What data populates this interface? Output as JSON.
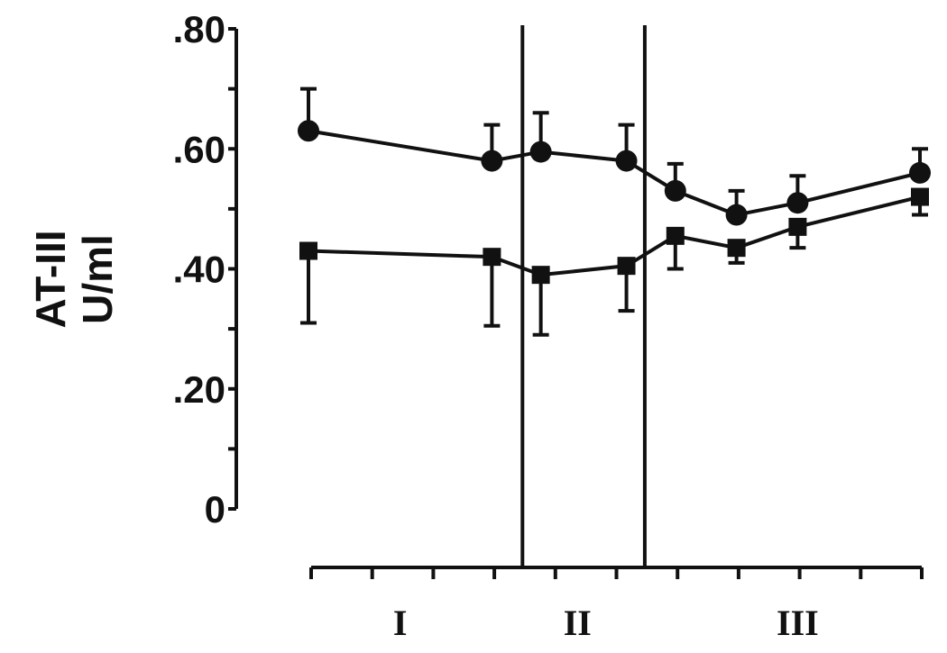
{
  "chart_data": {
    "type": "line",
    "title": "",
    "xlabel": "",
    "ylabel_lines": [
      "AT-III",
      "U/ml"
    ],
    "ylim": [
      0,
      0.8
    ],
    "yticks": [
      {
        "value": 0,
        "label": "0"
      },
      {
        "value": 0.2,
        "label": ".20"
      },
      {
        "value": 0.4,
        "label": ".40"
      },
      {
        "value": 0.6,
        "label": ".60"
      },
      {
        "value": 0.8,
        "label": ".80"
      }
    ],
    "y_minor_step": 0.1,
    "x_tick_count": 11,
    "xlim": [
      0,
      10
    ],
    "grid": false,
    "legend": "none",
    "sections": [
      {
        "label": "I",
        "center": 1.5
      },
      {
        "label": "II",
        "center": 4.4
      },
      {
        "label": "III",
        "center": 8
      }
    ],
    "dividers": [
      3.5,
      5.5
    ],
    "series": [
      {
        "marker": "circle",
        "x": [
          0,
          3,
          3.8,
          5.2,
          6,
          7,
          8,
          10
        ],
        "values": [
          0.63,
          0.58,
          0.595,
          0.58,
          0.53,
          0.49,
          0.51,
          0.56
        ],
        "error_upper": [
          0.07,
          0.06,
          0.065,
          0.06,
          0.045,
          0.04,
          0.045,
          0.04
        ],
        "error_lower": [
          0,
          0,
          0,
          0,
          0,
          0,
          0,
          0
        ]
      },
      {
        "marker": "square",
        "x": [
          0,
          3,
          3.8,
          5.2,
          6,
          7,
          8,
          10
        ],
        "values": [
          0.43,
          0.42,
          0.39,
          0.405,
          0.455,
          0.435,
          0.47,
          0.52
        ],
        "error_upper": [
          0,
          0,
          0,
          0,
          0,
          0,
          0,
          0
        ],
        "error_lower": [
          0.12,
          0.115,
          0.1,
          0.075,
          0.055,
          0.025,
          0.035,
          0.03
        ]
      }
    ]
  }
}
